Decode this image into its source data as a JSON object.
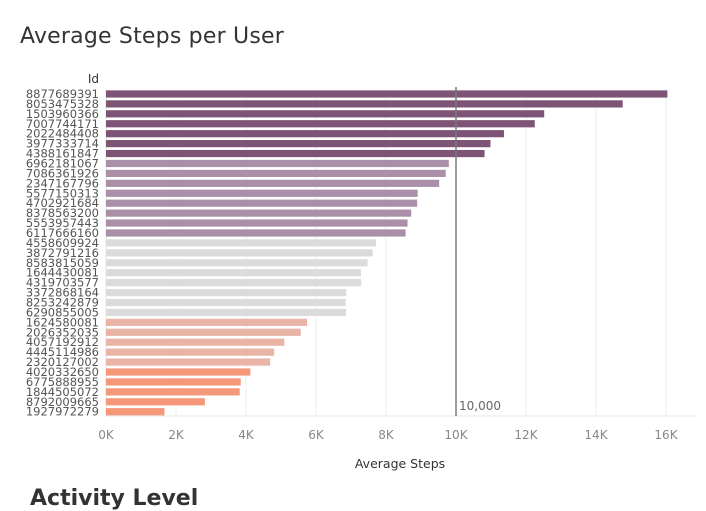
{
  "page": {
    "title": "Average Steps per User",
    "below_title": "Activity Level"
  },
  "chart_data": {
    "type": "bar",
    "orientation": "horizontal",
    "title": "Average Steps per User",
    "category_header": "Id",
    "xlabel": "Average Steps",
    "xlim": [
      0,
      16500
    ],
    "xticks": [
      0,
      2000,
      4000,
      6000,
      8000,
      10000,
      12000,
      14000,
      16000
    ],
    "xtick_labels": [
      "0K",
      "2K",
      "4K",
      "6K",
      "8K",
      "10K",
      "12K",
      "14K",
      "16K"
    ],
    "reference_line": {
      "value": 10000,
      "label": "10,000"
    },
    "grid": "vertical",
    "categories": [
      "8877689391",
      "8053475328",
      "1503960366",
      "7007744171",
      "2022484408",
      "3977333714",
      "4388161847",
      "6962181067",
      "7086361926",
      "2347167796",
      "5577150313",
      "4702921684",
      "8378563200",
      "5553957443",
      "6117666160",
      "4558609924",
      "3872791216",
      "8583815059",
      "1644430081",
      "4319703577",
      "3372868164",
      "8253242879",
      "6290855005",
      "1624580081",
      "2026352035",
      "4057192912",
      "4445114986",
      "2320127002",
      "4020332650",
      "6775888955",
      "1844505072",
      "8792009665",
      "1927972279"
    ],
    "values": [
      16040,
      14763,
      12520,
      12250,
      11370,
      10985,
      10815,
      9795,
      9705,
      9520,
      8905,
      8890,
      8720,
      8615,
      8560,
      7715,
      7620,
      7475,
      7285,
      7290,
      6865,
      6845,
      6860,
      5745,
      5565,
      5095,
      4805,
      4690,
      4125,
      3850,
      3820,
      2825,
      1670
    ],
    "groups": [
      7,
      8,
      8,
      5,
      5
    ],
    "group_colors": [
      "#7d5475",
      "#a98fa7",
      "#dbdbdb",
      "#e9b4a6",
      "#f59779"
    ]
  }
}
